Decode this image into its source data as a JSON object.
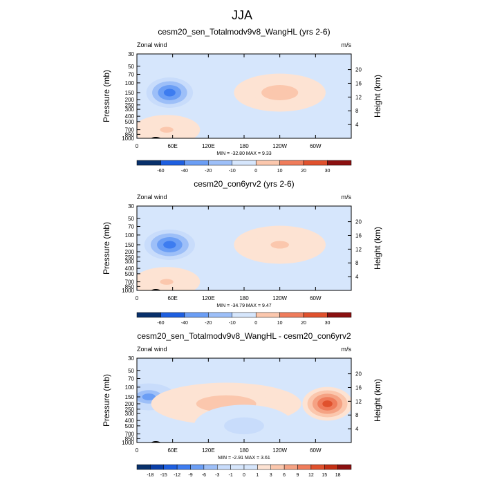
{
  "figure": {
    "title": "JJA",
    "colors": {
      "neg": [
        "#08306b",
        "#0a3fa8",
        "#1e5fe0",
        "#3d7cf0",
        "#6b9ef5",
        "#9dbff8",
        "#c8dcfb",
        "#d6e6fc"
      ],
      "pos": [
        "#fde3d3",
        "#fbc7ad",
        "#f5a283",
        "#ef7c5b",
        "#e0512d",
        "#c43014",
        "#8b1010"
      ],
      "background": "#d6e6fc"
    }
  },
  "chart_data": [
    {
      "type": "heatmap",
      "title": "cesm20_sen_Totalmodv9v8_WangHL (yrs 2-6)",
      "left_label": "Zonal wind",
      "right_label": "m/s",
      "ylabel": "Pressure (mb)",
      "ylabel_right": "Height (km)",
      "x_ticks": [
        "0",
        "60E",
        "120E",
        "180",
        "120W",
        "60W"
      ],
      "y_ticks": [
        "30",
        "50",
        "70",
        "100",
        "150",
        "200",
        "250",
        "300",
        "400",
        "500",
        "700",
        "850",
        "1000"
      ],
      "y_ticks_right": [
        "20",
        "16",
        "12",
        "8",
        "4"
      ],
      "stats": "MIN = -32.80  MAX =  9.33",
      "colorbar_labels": [
        "-60",
        "-40",
        "-20",
        "-10",
        "0",
        "10",
        "20",
        "30"
      ],
      "xlim": [
        0,
        360
      ],
      "features": [
        {
          "lon": 55,
          "p": 150,
          "value": -30,
          "lon_w": 35,
          "p_w": 0.45
        },
        {
          "lon": 240,
          "p": 150,
          "value": 9,
          "lon_w": 55,
          "p_w": 0.45
        },
        {
          "lon": 50,
          "p": 700,
          "value": 8,
          "lon_w": 40,
          "p_w": 0.35
        }
      ]
    },
    {
      "type": "heatmap",
      "title": "cesm20_con6yrv2 (yrs 2-6)",
      "left_label": "Zonal wind",
      "right_label": "m/s",
      "ylabel": "Pressure (mb)",
      "ylabel_right": "Height (km)",
      "x_ticks": [
        "0",
        "60E",
        "120E",
        "180",
        "120W",
        "60W"
      ],
      "y_ticks": [
        "30",
        "50",
        "70",
        "100",
        "150",
        "200",
        "250",
        "300",
        "400",
        "500",
        "700",
        "850",
        "1000"
      ],
      "y_ticks_right": [
        "20",
        "16",
        "12",
        "8",
        "4"
      ],
      "stats": "MIN = -34.79  MAX =  9.47",
      "colorbar_labels": [
        "-60",
        "-40",
        "-20",
        "-10",
        "0",
        "10",
        "20",
        "30"
      ],
      "xlim": [
        0,
        360
      ],
      "features": [
        {
          "lon": 55,
          "p": 150,
          "value": -32,
          "lon_w": 38,
          "p_w": 0.45
        },
        {
          "lon": 240,
          "p": 150,
          "value": 9,
          "lon_w": 55,
          "p_w": 0.45
        },
        {
          "lon": 50,
          "p": 700,
          "value": 9,
          "lon_w": 40,
          "p_w": 0.35
        }
      ]
    },
    {
      "type": "heatmap",
      "title": "cesm20_sen_Totalmodv9v8_WangHL - cesm20_con6yrv2",
      "left_label": "Zonal wind",
      "right_label": "m/s",
      "ylabel": "Pressure (mb)",
      "ylabel_right": "Height (km)",
      "x_ticks": [
        "0",
        "60E",
        "120E",
        "180",
        "120W",
        "60W"
      ],
      "y_ticks": [
        "30",
        "50",
        "70",
        "100",
        "150",
        "200",
        "250",
        "300",
        "400",
        "500",
        "700",
        "850",
        "1000"
      ],
      "y_ticks_right": [
        "20",
        "16",
        "12",
        "8",
        "4"
      ],
      "stats": "MIN = -2.91  MAX =  3.61",
      "colorbar_labels": [
        "-18",
        "-15",
        "-12",
        "-9",
        "-6",
        "-3",
        "-1",
        "0",
        "1",
        "3",
        "6",
        "9",
        "12",
        "15",
        "18"
      ],
      "xlim": [
        0,
        360
      ],
      "features": [
        {
          "lon": 20,
          "p": 150,
          "value": -2,
          "lon_w": 40,
          "p_w": 0.4
        },
        {
          "lon": 150,
          "p": 200,
          "value": 1,
          "lon_w": 90,
          "p_w": 0.5
        },
        {
          "lon": 320,
          "p": 200,
          "value": 3,
          "lon_w": 30,
          "p_w": 0.4
        },
        {
          "lon": 180,
          "p": 500,
          "value": -1,
          "lon_w": 60,
          "p_w": 0.5
        }
      ]
    }
  ]
}
